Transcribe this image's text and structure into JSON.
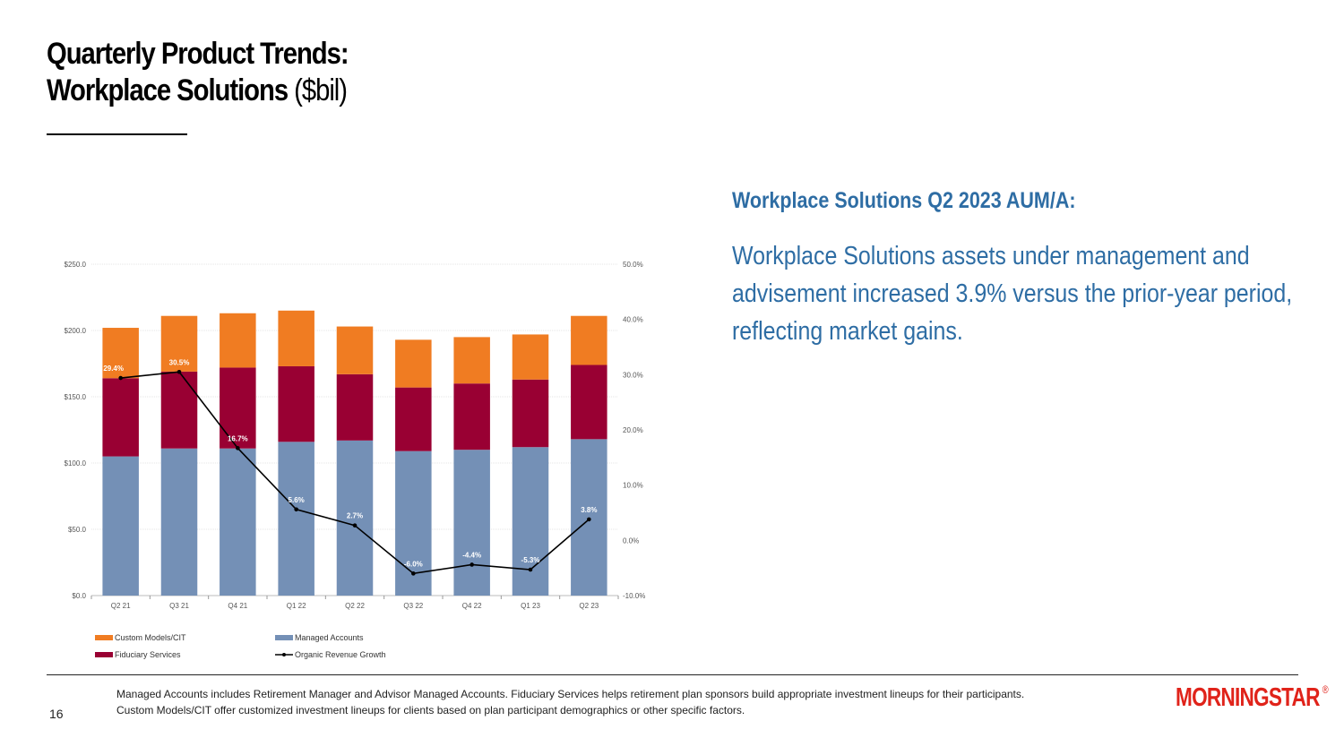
{
  "slide": {
    "title_line1": "Quarterly Product Trends:",
    "title_line2_bold": "Workplace Solutions",
    "title_line2_normal": " ($bil)",
    "side_heading": "Workplace Solutions Q2 2023 AUM/A:",
    "side_body": "Workplace Solutions assets under management and advisement increased 3.9% versus the prior-year period, reflecting market gains.",
    "footnote_line1": "Managed Accounts includes Retirement Manager and Advisor Managed Accounts. Fiduciary Services helps retirement plan sponsors build appropriate investment lineups for their participants.",
    "footnote_line2": "Custom Models/CIT offer customized investment lineups for clients based on plan participant demographics or other specific factors.",
    "page_number": "16",
    "logo_text": "MORNINGSTAR",
    "logo_mark": "®"
  },
  "colors": {
    "managed_accounts": "#7490b6",
    "fiduciary_services": "#990033",
    "custom_models": "#f07c22",
    "growth_line": "#000000",
    "accent_blue": "#2e6da4",
    "logo_red": "#e0231a"
  },
  "chart_data": {
    "type": "bar",
    "stacked": true,
    "categories": [
      "Q2 21",
      "Q3 21",
      "Q4 21",
      "Q1 22",
      "Q2 22",
      "Q3 22",
      "Q4 22",
      "Q1 23",
      "Q2 23"
    ],
    "series": [
      {
        "name": "Managed Accounts",
        "values": [
          105,
          111,
          111,
          116,
          117,
          109,
          110,
          112,
          118
        ]
      },
      {
        "name": "Fiduciary Services",
        "values": [
          59,
          58,
          61,
          57,
          50,
          48,
          50,
          51,
          56
        ]
      },
      {
        "name": "Custom Models/CIT",
        "values": [
          38,
          42,
          41,
          42,
          36,
          36,
          35,
          34,
          37
        ]
      }
    ],
    "line_series": {
      "name": "Organic Revenue Growth",
      "values": [
        29.4,
        30.5,
        16.7,
        5.6,
        2.7,
        -6.0,
        -4.4,
        -5.3,
        3.8
      ],
      "labels": [
        "29.4%",
        "30.5%",
        "16.7%",
        "5.6%",
        "2.7%",
        "-6.0%",
        "-4.4%",
        "-5.3%",
        "3.8%"
      ]
    },
    "y_left": {
      "ticks": [
        0,
        50,
        100,
        150,
        200,
        250
      ],
      "tick_labels": [
        "$0.0",
        "$50.0",
        "$100.0",
        "$150.0",
        "$200.0",
        "$250.0"
      ],
      "ylim": [
        0,
        250
      ]
    },
    "y_right": {
      "ticks": [
        -10,
        0,
        10,
        20,
        30,
        40,
        50
      ],
      "tick_labels": [
        "-10.0%",
        "0.0%",
        "10.0%",
        "20.0%",
        "30.0%",
        "40.0%",
        "50.0%"
      ],
      "ylim": [
        -10,
        50
      ]
    },
    "legend_order": [
      "Custom Models/CIT",
      "Managed Accounts",
      "Fiduciary Services",
      "Organic Revenue Growth"
    ],
    "legend_position": "bottom-left",
    "grid": true
  }
}
